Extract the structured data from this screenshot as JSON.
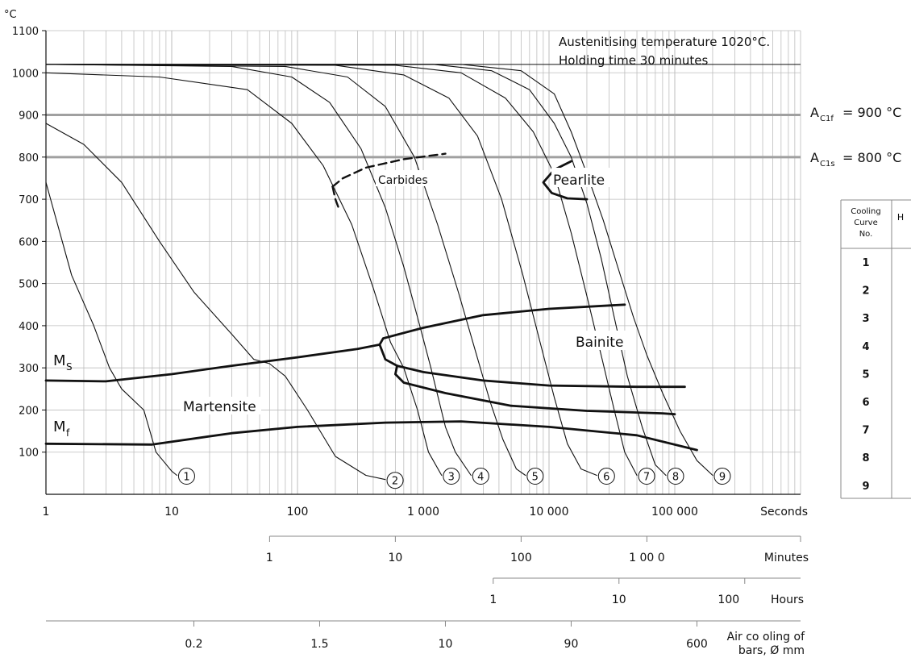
{
  "chart_data": {
    "type": "line",
    "title": "",
    "ylabel": "°C",
    "xlabel": "Seconds",
    "x_scale": "log",
    "xlim": [
      1,
      1000000
    ],
    "ylim": [
      0,
      1100
    ],
    "grid": true,
    "y_ticks": [
      100,
      200,
      300,
      400,
      500,
      600,
      700,
      800,
      900,
      1000,
      1100
    ],
    "x_tick_labels": [
      {
        "x": 1,
        "label": "1"
      },
      {
        "x": 10,
        "label": "10"
      },
      {
        "x": 100,
        "label": "100"
      },
      {
        "x": 1000,
        "label": "1 000"
      },
      {
        "x": 10000,
        "label": "10 000"
      },
      {
        "x": 100000,
        "label": "100 000"
      }
    ],
    "annotations": {
      "austenitising": [
        "Austenitising temperature 1020°C.",
        "Holding time 30 minutes"
      ],
      "ac1f_main": "A",
      "ac1f_sub": "C1f",
      "ac1f_rest": "= 900 °C",
      "ac1s_main": "A",
      "ac1s_sub": "C1s",
      "ac1s_rest": "= 800 °C",
      "carbides": "Carbides",
      "pearlite": "Pearlite",
      "bainite": "Bainite",
      "martensite": "Martensite",
      "ms_main": "M",
      "ms_sub": "S",
      "mf_main": "M",
      "mf_sub": "f"
    },
    "reference_lines": [
      {
        "y": 1020,
        "label": "austenitising"
      },
      {
        "y": 900,
        "label": "A_C1f"
      },
      {
        "y": 800,
        "label": "A_C1s"
      }
    ],
    "secondary_axes": [
      {
        "unit": "Minutes",
        "ticks": [
          {
            "x": 60,
            "label": "1"
          },
          {
            "x": 600,
            "label": "10"
          },
          {
            "x": 6000,
            "label": "100"
          },
          {
            "x": 60000,
            "label": "1 00 0"
          }
        ]
      },
      {
        "unit": "Hours",
        "ticks": [
          {
            "x": 3600,
            "label": "1"
          },
          {
            "x": 36000,
            "label": "10"
          },
          {
            "x": 360000,
            "label": "100"
          }
        ]
      },
      {
        "unit_line1": "Air co oling of",
        "unit_line2": "bars, Ø mm",
        "ticks": [
          {
            "x": 15,
            "label": "0.2"
          },
          {
            "x": 150,
            "label": "1.5"
          },
          {
            "x": 1500,
            "label": "10"
          },
          {
            "x": 15000,
            "label": "90"
          },
          {
            "x": 150000,
            "label": "600"
          }
        ]
      }
    ],
    "cooling_curves": [
      {
        "name": "1",
        "points": [
          [
            1,
            740
          ],
          [
            1.6,
            520
          ],
          [
            2.4,
            400
          ],
          [
            3.2,
            300
          ],
          [
            4,
            250
          ],
          [
            6,
            200
          ],
          [
            7.5,
            100
          ],
          [
            10,
            55
          ],
          [
            11,
            45
          ]
        ]
      },
      {
        "name": "2",
        "points": [
          [
            1,
            880
          ],
          [
            2,
            830
          ],
          [
            4,
            740
          ],
          [
            8,
            600
          ],
          [
            15,
            480
          ],
          [
            30,
            380
          ],
          [
            45,
            320
          ],
          [
            60,
            310
          ],
          [
            80,
            280
          ],
          [
            120,
            200
          ],
          [
            200,
            90
          ],
          [
            350,
            45
          ],
          [
            500,
            35
          ]
        ]
      },
      {
        "name": "3",
        "points": [
          [
            1,
            1000
          ],
          [
            8,
            990
          ],
          [
            40,
            960
          ],
          [
            90,
            880
          ],
          [
            160,
            780
          ],
          [
            270,
            640
          ],
          [
            400,
            490
          ],
          [
            550,
            360
          ],
          [
            700,
            300
          ],
          [
            900,
            200
          ],
          [
            1100,
            100
          ],
          [
            1400,
            45
          ]
        ]
      },
      {
        "name": "4",
        "points": [
          [
            1,
            1020
          ],
          [
            30,
            1015
          ],
          [
            90,
            990
          ],
          [
            180,
            930
          ],
          [
            320,
            820
          ],
          [
            500,
            680
          ],
          [
            700,
            540
          ],
          [
            900,
            420
          ],
          [
            1150,
            300
          ],
          [
            1500,
            160
          ],
          [
            1800,
            100
          ],
          [
            2400,
            45
          ]
        ]
      },
      {
        "name": "5",
        "points": [
          [
            1,
            1020
          ],
          [
            80,
            1015
          ],
          [
            250,
            990
          ],
          [
            500,
            920
          ],
          [
            850,
            800
          ],
          [
            1300,
            640
          ],
          [
            1900,
            480
          ],
          [
            2600,
            340
          ],
          [
            3400,
            220
          ],
          [
            4300,
            130
          ],
          [
            5500,
            60
          ],
          [
            6500,
            45
          ]
        ]
      },
      {
        "name": "6",
        "points": [
          [
            1,
            1020
          ],
          [
            200,
            1018
          ],
          [
            700,
            995
          ],
          [
            1600,
            940
          ],
          [
            2700,
            850
          ],
          [
            4200,
            700
          ],
          [
            6200,
            520
          ],
          [
            8500,
            360
          ],
          [
            11000,
            230
          ],
          [
            14000,
            120
          ],
          [
            18000,
            60
          ],
          [
            24000,
            45
          ]
        ]
      },
      {
        "name": "7",
        "points": [
          [
            1,
            1020
          ],
          [
            600,
            1018
          ],
          [
            2000,
            1000
          ],
          [
            4500,
            940
          ],
          [
            7500,
            860
          ],
          [
            11000,
            760
          ],
          [
            15000,
            620
          ],
          [
            20000,
            470
          ],
          [
            26000,
            330
          ],
          [
            33000,
            200
          ],
          [
            40000,
            100
          ],
          [
            50000,
            45
          ]
        ]
      },
      {
        "name": "8",
        "points": [
          [
            1,
            1020
          ],
          [
            1200,
            1020
          ],
          [
            3500,
            1005
          ],
          [
            7000,
            960
          ],
          [
            11000,
            880
          ],
          [
            15000,
            800
          ],
          [
            20000,
            690
          ],
          [
            26000,
            560
          ],
          [
            33000,
            420
          ],
          [
            42000,
            280
          ],
          [
            55000,
            160
          ],
          [
            70000,
            70
          ],
          [
            85000,
            45
          ]
        ]
      },
      {
        "name": "9",
        "points": [
          [
            1,
            1020
          ],
          [
            2000,
            1020
          ],
          [
            6000,
            1005
          ],
          [
            11000,
            950
          ],
          [
            15000,
            860
          ],
          [
            20000,
            760
          ],
          [
            27000,
            650
          ],
          [
            36000,
            530
          ],
          [
            47000,
            420
          ],
          [
            60000,
            330
          ],
          [
            80000,
            240
          ],
          [
            110000,
            150
          ],
          [
            150000,
            80
          ],
          [
            200000,
            45
          ]
        ]
      }
    ],
    "transformation_lines": [
      {
        "name": "Ms",
        "points": [
          [
            1,
            270
          ],
          [
            3,
            268
          ],
          [
            10,
            285
          ],
          [
            30,
            305
          ],
          [
            100,
            325
          ],
          [
            300,
            345
          ],
          [
            450,
            355
          ]
        ]
      },
      {
        "name": "Mf",
        "points": [
          [
            1,
            120
          ],
          [
            7,
            118
          ],
          [
            30,
            145
          ],
          [
            100,
            160
          ],
          [
            500,
            170
          ],
          [
            2000,
            173
          ],
          [
            10000,
            160
          ],
          [
            50000,
            140
          ],
          [
            150000,
            105
          ]
        ]
      },
      {
        "name": "Bainite start",
        "points": [
          [
            450,
            355
          ],
          [
            480,
            370
          ],
          [
            1000,
            395
          ],
          [
            3000,
            425
          ],
          [
            10000,
            440
          ],
          [
            40000,
            450
          ]
        ]
      },
      {
        "name": "Bainite nose",
        "points": [
          [
            450,
            355
          ],
          [
            500,
            320
          ],
          [
            620,
            305
          ]
        ]
      },
      {
        "name": "Bainite 50%",
        "points": [
          [
            620,
            305
          ],
          [
            1000,
            290
          ],
          [
            3000,
            270
          ],
          [
            10000,
            258
          ],
          [
            50000,
            255
          ],
          [
            120000,
            255
          ]
        ]
      },
      {
        "name": "Bainite end",
        "points": [
          [
            620,
            305
          ],
          [
            600,
            285
          ],
          [
            700,
            265
          ],
          [
            1500,
            240
          ],
          [
            5000,
            210
          ],
          [
            20000,
            198
          ],
          [
            80000,
            192
          ],
          [
            100000,
            190
          ]
        ]
      },
      {
        "name": "Carbides",
        "dashed": true,
        "points": [
          [
            190,
            730
          ],
          [
            230,
            750
          ],
          [
            350,
            775
          ],
          [
            700,
            795
          ],
          [
            1500,
            808
          ]
        ]
      },
      {
        "name": "Carbides lower",
        "dashed": true,
        "points": [
          [
            190,
            730
          ],
          [
            200,
            700
          ],
          [
            215,
            675
          ]
        ]
      },
      {
        "name": "Pearlite",
        "points": [
          [
            15000,
            790
          ],
          [
            11000,
            770
          ],
          [
            9000,
            740
          ],
          [
            10500,
            715
          ],
          [
            14000,
            702
          ],
          [
            20000,
            700
          ]
        ]
      }
    ],
    "legend_table": {
      "header": [
        "Cooling Curve No.",
        "H"
      ],
      "rows": [
        "1",
        "2",
        "3",
        "4",
        "5",
        "6",
        "7",
        "8",
        "9"
      ]
    }
  }
}
